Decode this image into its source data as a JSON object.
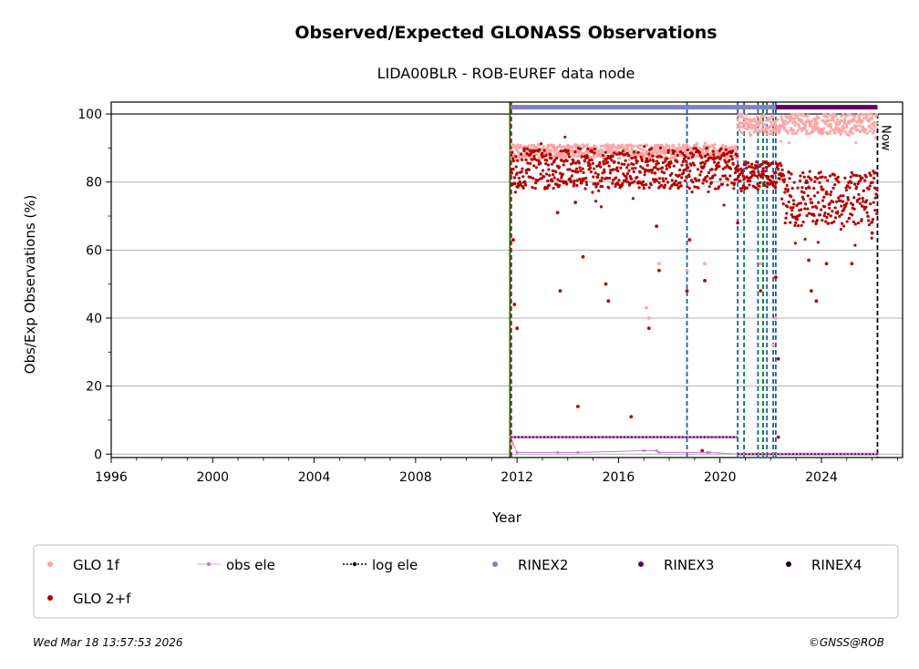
{
  "page": {
    "footer_left": "Wed Mar 18 13:57:53 2026",
    "footer_right": "©GNSS@ROB"
  },
  "chart_data": {
    "type": "scatter",
    "title": "Observed/Expected GLONASS Observations",
    "subtitle": "LIDA00BLR - ROB-EUREF data node",
    "xlabel": "Year",
    "ylabel": "Obs/Exp Observations (%)",
    "xlim": [
      1996,
      2027.2
    ],
    "ylim": [
      -1,
      103.5
    ],
    "xticks": [
      1996,
      2000,
      2004,
      2008,
      2012,
      2016,
      2020,
      2024
    ],
    "yticks": [
      0,
      20,
      40,
      60,
      80,
      100
    ],
    "grid": "horizontal",
    "legend_position": "bottom",
    "now_label": "Now",
    "now_x": 2026.21,
    "series": [
      {
        "name": "GLO 1f",
        "color": "#ffa5a5",
        "marker": "dot",
        "segments": [
          {
            "x": [
              2011.75,
              2020.7
            ],
            "level": 89,
            "spread": 2
          },
          {
            "x": [
              2020.7,
              2026.2
            ],
            "level": 97,
            "spread": 3
          }
        ],
        "outliers": [
          [
            2011.8,
            3
          ],
          [
            2017.1,
            43
          ],
          [
            2017.2,
            40
          ],
          [
            2017.6,
            56
          ],
          [
            2018.7,
            54
          ],
          [
            2019.4,
            56
          ],
          [
            2021.6,
            56
          ],
          [
            2022.2,
            40
          ],
          [
            2022.1,
            32
          ]
        ]
      },
      {
        "name": "GLO 2+f",
        "color": "#b40000",
        "marker": "dot",
        "segments": [
          {
            "x": [
              2011.75,
              2020.7
            ],
            "level": 84,
            "spread": 6
          },
          {
            "x": [
              2020.7,
              2022.5
            ],
            "level": 82,
            "spread": 4
          },
          {
            "x": [
              2022.5,
              2026.2
            ],
            "level": 75,
            "spread": 8
          }
        ],
        "outliers": [
          [
            2011.85,
            63
          ],
          [
            2011.9,
            44
          ],
          [
            2012.0,
            37
          ],
          [
            2013.6,
            71
          ],
          [
            2013.7,
            48
          ],
          [
            2014.3,
            74
          ],
          [
            2014.4,
            14
          ],
          [
            2014.6,
            58
          ],
          [
            2015.5,
            50
          ],
          [
            2015.6,
            45
          ],
          [
            2016.5,
            11
          ],
          [
            2017.2,
            37
          ],
          [
            2017.5,
            67
          ],
          [
            2017.6,
            54
          ],
          [
            2018.7,
            48
          ],
          [
            2018.8,
            63
          ],
          [
            2019.3,
            1
          ],
          [
            2019.4,
            51
          ],
          [
            2020.7,
            68
          ],
          [
            2021.6,
            48
          ],
          [
            2022.2,
            52
          ],
          [
            2022.3,
            28
          ],
          [
            2022.3,
            5
          ],
          [
            2023.5,
            57
          ],
          [
            2023.6,
            48
          ],
          [
            2023.8,
            45
          ],
          [
            2024.2,
            56
          ],
          [
            2025.2,
            56
          ],
          [
            2026.0,
            65
          ]
        ]
      },
      {
        "name": "obs ele",
        "color": "#c080c8",
        "marker": "line",
        "x": [
          2011.75,
          2012.0,
          2013.6,
          2014.4,
          2017.0,
          2017.5,
          2017.6,
          2019.5,
          2019.6,
          2020.7,
          2026.2
        ],
        "y": [
          5,
          0.5,
          0.5,
          0.5,
          1,
          1,
          0.5,
          0.5,
          0.5,
          0,
          0
        ]
      },
      {
        "name": "log ele",
        "color": "#000000",
        "marker": "dotted-line",
        "steps": [
          {
            "x": [
              2011.75,
              2020.7
            ],
            "y": 5
          },
          {
            "x": [
              2020.7,
              2026.21
            ],
            "y": 0
          }
        ]
      },
      {
        "name": "RINEX2",
        "color": "#8080c0",
        "marker": "dot",
        "x": [
          2011.75,
          2022.2
        ],
        "y": 102
      },
      {
        "name": "RINEX3",
        "color": "#600060",
        "marker": "dot",
        "x": [
          2022.2,
          2026.21
        ],
        "y": 102
      },
      {
        "name": "RINEX4",
        "color": "#200020",
        "marker": "dot",
        "x": [],
        "y": 102
      }
    ],
    "vertical_lines": [
      {
        "x": 2011.72,
        "color": "#008000",
        "style": "solid"
      },
      {
        "x": 2011.77,
        "color": "#b40000",
        "style": "dashed"
      },
      {
        "x": 2018.7,
        "color": "#1060b0",
        "style": "dashed"
      },
      {
        "x": 2020.7,
        "color": "#1060b0",
        "style": "dashed"
      },
      {
        "x": 2020.95,
        "color": "#1060b0",
        "style": "dashed"
      },
      {
        "x": 2021.5,
        "color": "#1060b0",
        "style": "dashed"
      },
      {
        "x": 2021.7,
        "color": "#008000",
        "style": "dashed"
      },
      {
        "x": 2021.85,
        "color": "#1060b0",
        "style": "dashed"
      },
      {
        "x": 2022.1,
        "color": "#1060b0",
        "style": "dashed"
      },
      {
        "x": 2022.2,
        "color": "#1060b0",
        "style": "dashed"
      },
      {
        "x": 2026.21,
        "color": "#000000",
        "style": "dashed"
      }
    ]
  }
}
